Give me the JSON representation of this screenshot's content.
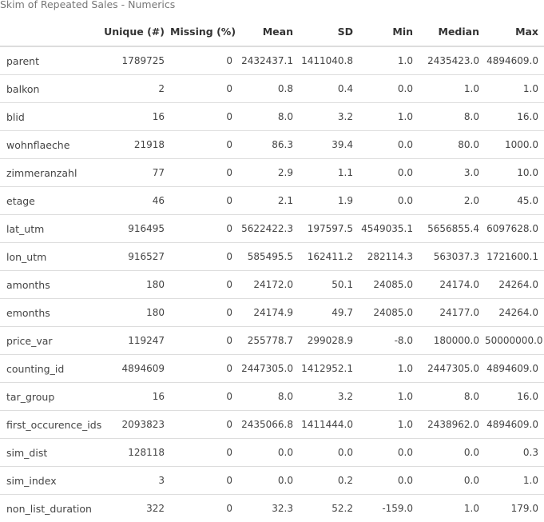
{
  "caption": "Skim of Repeated Sales - Numerics",
  "columns": [
    "",
    "Unique (#)",
    "Missing (%)",
    "Mean",
    "SD",
    "Min",
    "Median",
    "Max"
  ],
  "rows": [
    [
      "parent",
      "1789725",
      "0",
      "2432437.1",
      "1411040.8",
      "1.0",
      "2435423.0",
      "4894609.0"
    ],
    [
      "balkon",
      "2",
      "0",
      "0.8",
      "0.4",
      "0.0",
      "1.0",
      "1.0"
    ],
    [
      "blid",
      "16",
      "0",
      "8.0",
      "3.2",
      "1.0",
      "8.0",
      "16.0"
    ],
    [
      "wohnflaeche",
      "21918",
      "0",
      "86.3",
      "39.4",
      "0.0",
      "80.0",
      "1000.0"
    ],
    [
      "zimmeranzahl",
      "77",
      "0",
      "2.9",
      "1.1",
      "0.0",
      "3.0",
      "10.0"
    ],
    [
      "etage",
      "46",
      "0",
      "2.1",
      "1.9",
      "0.0",
      "2.0",
      "45.0"
    ],
    [
      "lat_utm",
      "916495",
      "0",
      "5622422.3",
      "197597.5",
      "4549035.1",
      "5656855.4",
      "6097628.0"
    ],
    [
      "lon_utm",
      "916527",
      "0",
      "585495.5",
      "162411.2",
      "282114.3",
      "563037.3",
      "1721600.1"
    ],
    [
      "amonths",
      "180",
      "0",
      "24172.0",
      "50.1",
      "24085.0",
      "24174.0",
      "24264.0"
    ],
    [
      "emonths",
      "180",
      "0",
      "24174.9",
      "49.7",
      "24085.0",
      "24177.0",
      "24264.0"
    ],
    [
      "price_var",
      "119247",
      "0",
      "255778.7",
      "299028.9",
      "-8.0",
      "180000.0",
      "50000000.0"
    ],
    [
      "counting_id",
      "4894609",
      "0",
      "2447305.0",
      "1412952.1",
      "1.0",
      "2447305.0",
      "4894609.0"
    ],
    [
      "tar_group",
      "16",
      "0",
      "8.0",
      "3.2",
      "1.0",
      "8.0",
      "16.0"
    ],
    [
      "first_occurence_ids",
      "2093823",
      "0",
      "2435066.8",
      "1411444.0",
      "1.0",
      "2438962.0",
      "4894609.0"
    ],
    [
      "sim_dist",
      "128118",
      "0",
      "0.0",
      "0.0",
      "0.0",
      "0.0",
      "0.3"
    ],
    [
      "sim_index",
      "3",
      "0",
      "0.0",
      "0.2",
      "0.0",
      "0.0",
      "1.0"
    ],
    [
      "non_list_duration",
      "322",
      "0",
      "32.3",
      "52.2",
      "-159.0",
      "1.0",
      "179.0"
    ]
  ]
}
